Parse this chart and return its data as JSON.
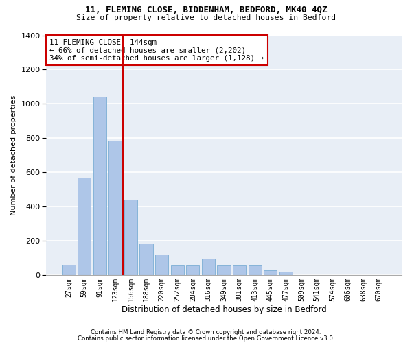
{
  "title1": "11, FLEMING CLOSE, BIDDENHAM, BEDFORD, MK40 4QZ",
  "title2": "Size of property relative to detached houses in Bedford",
  "xlabel": "Distribution of detached houses by size in Bedford",
  "ylabel": "Number of detached properties",
  "footnote1": "Contains HM Land Registry data © Crown copyright and database right 2024.",
  "footnote2": "Contains public sector information licensed under the Open Government Licence v3.0.",
  "categories": [
    "27sqm",
    "59sqm",
    "91sqm",
    "123sqm",
    "156sqm",
    "188sqm",
    "220sqm",
    "252sqm",
    "284sqm",
    "316sqm",
    "349sqm",
    "381sqm",
    "413sqm",
    "445sqm",
    "477sqm",
    "509sqm",
    "541sqm",
    "574sqm",
    "606sqm",
    "638sqm",
    "670sqm"
  ],
  "values": [
    60,
    570,
    1040,
    785,
    440,
    185,
    120,
    55,
    55,
    95,
    55,
    55,
    55,
    28,
    18,
    0,
    0,
    0,
    0,
    0,
    0
  ],
  "bar_color": "#aec6e8",
  "bar_edge_color": "#7aadd4",
  "bg_color": "#e8eef6",
  "grid_color": "#ffffff",
  "vline_color": "#cc0000",
  "vline_x_index": 3.5,
  "annotation_box_text": "11 FLEMING CLOSE: 144sqm\n← 66% of detached houses are smaller (2,202)\n34% of semi-detached houses are larger (1,128) →",
  "annotation_box_color": "#cc0000",
  "ylim": [
    0,
    1400
  ],
  "yticks": [
    0,
    200,
    400,
    600,
    800,
    1000,
    1200,
    1400
  ]
}
